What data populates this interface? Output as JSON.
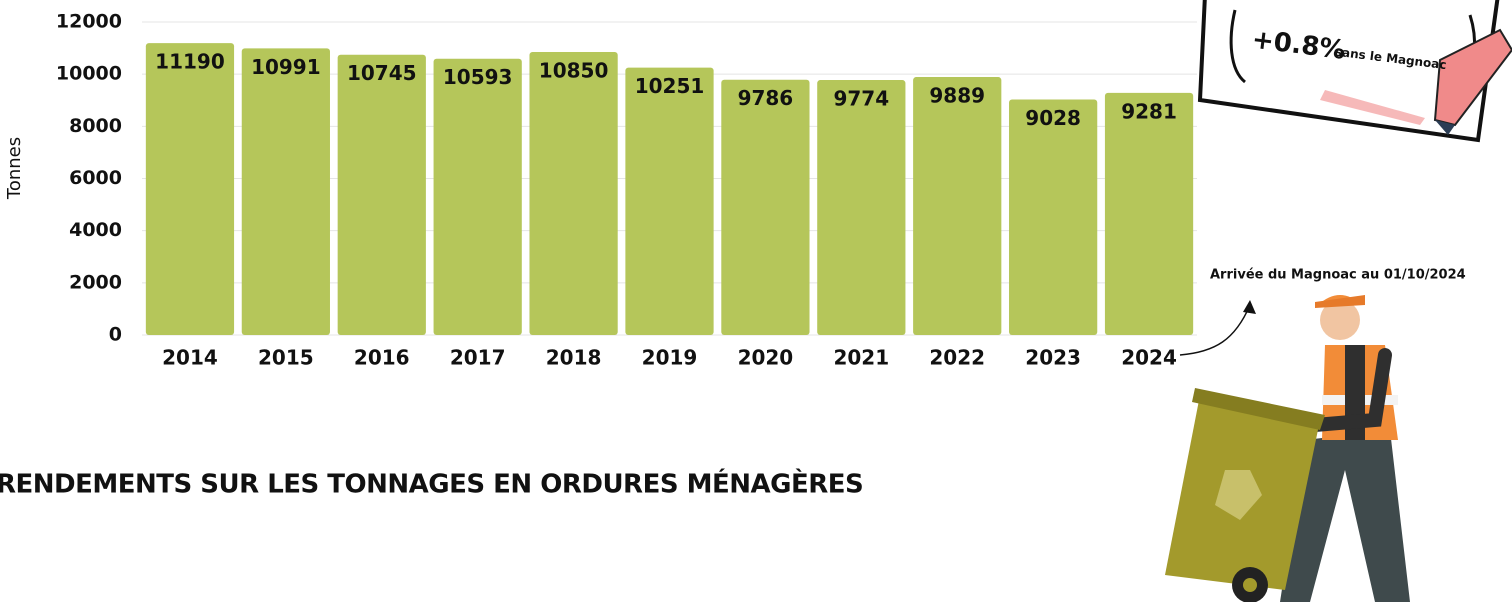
{
  "chart_data": {
    "type": "bar",
    "title": "RENDEMENTS SUR LES TONNAGES EN ORDURES MÉNAGÈRES",
    "y_label": "Tonnes",
    "categories": [
      "2014",
      "2015",
      "2016",
      "2017",
      "2018",
      "2019",
      "2020",
      "2021",
      "2022",
      "2023",
      "2024"
    ],
    "values": [
      11190,
      10991,
      10745,
      10593,
      10850,
      10251,
      9786,
      9774,
      9889,
      9028,
      9281
    ],
    "color": "#b5c65a",
    "ylim": [
      0,
      12000
    ],
    "yticks": [
      0,
      2000,
      4000,
      6000,
      8000,
      10000,
      12000
    ],
    "grid": true,
    "annotations": [
      "Arrivée du  Magnoac au 01/10/2024",
      "+0.8%",
      "sans le Magnoac"
    ]
  }
}
